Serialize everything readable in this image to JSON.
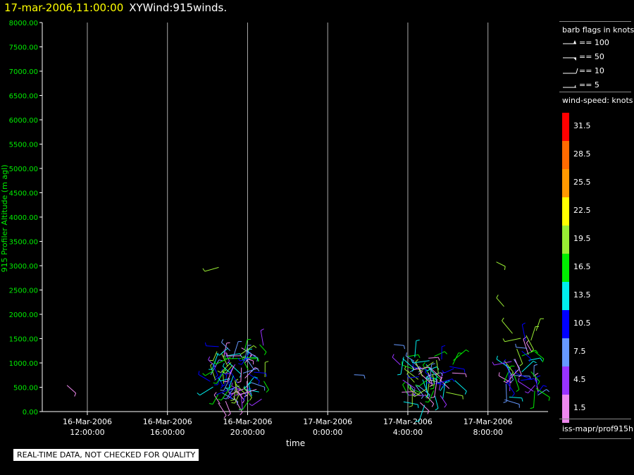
{
  "title": {
    "datetime": "17-mar-2006,11:00:00",
    "name": "XYWind:915winds."
  },
  "footer_note": "REAL-TIME DATA, NOT CHECKED FOR QUALITY",
  "legend": {
    "barb_title": "barb flags in knots",
    "barbs": [
      {
        "label": "== 100"
      },
      {
        "label": "== 50"
      },
      {
        "label": "== 10"
      },
      {
        "label": "== 5"
      }
    ],
    "speed_title": "wind-speed: knots",
    "speed_bins": [
      {
        "label": "31.5",
        "color": "#ff0000"
      },
      {
        "label": "28.5",
        "color": "#ff6a00"
      },
      {
        "label": "25.5",
        "color": "#ff9900"
      },
      {
        "label": "22.5",
        "color": "#ffff00"
      },
      {
        "label": "19.5",
        "color": "#99ee33"
      },
      {
        "label": "16.5",
        "color": "#00ee00"
      },
      {
        "label": "13.5",
        "color": "#00eeee"
      },
      {
        "label": "10.5",
        "color": "#0000ff"
      },
      {
        "label": "7.5",
        "color": "#6699ff"
      },
      {
        "label": "4.5",
        "color": "#9933ff"
      },
      {
        "label": "1.5",
        "color": "#ee88ee"
      }
    ],
    "source": "iss-mapr/prof915h"
  },
  "chart_data": {
    "type": "scatter",
    "title": "17-mar-2006,11:00:00 XYWind:915winds.",
    "xlabel": "time",
    "ylabel": "915 Profiler Altitude (m agl)",
    "ylim": [
      0,
      8000
    ],
    "yticks": [
      "0.00",
      "500.00",
      "1000.00",
      "1500.00",
      "2000.00",
      "2500.00",
      "3000.00",
      "3500.00",
      "4000.00",
      "4500.00",
      "5000.00",
      "5500.00",
      "6000.00",
      "6500.00",
      "7000.00",
      "7500.00",
      "8000.00"
    ],
    "xlim": [
      "2006-03-16 09:45",
      "2006-03-17 11:00"
    ],
    "xticks": [
      {
        "date": "16-Mar-2006",
        "time": "12:00:00",
        "t": "2006-03-16 12:00"
      },
      {
        "date": "16-Mar-2006",
        "time": "16:00:00",
        "t": "2006-03-16 16:00"
      },
      {
        "date": "16-Mar-2006",
        "time": "20:00:00",
        "t": "2006-03-16 20:00"
      },
      {
        "date": "17-Mar-2006",
        "time": "0:00:00",
        "t": "2006-03-17 00:00"
      },
      {
        "date": "17-Mar-2006",
        "time": "4:00:00",
        "t": "2006-03-17 04:00"
      },
      {
        "date": "17-Mar-2006",
        "time": "8:00:00",
        "t": "2006-03-17 08:00"
      }
    ],
    "grid": "vertical lines at time ticks",
    "series": [
      {
        "values": [
          {
            "t": "2006-03-16 11:00",
            "alt": [
              550
            ]
          },
          {
            "t": "2006-03-16 19:00",
            "alt": [
              200,
              280,
              360,
              440,
              520,
              600,
              680,
              760,
              840,
              920,
              1000,
              1080,
              1160,
              1240,
              1320
            ]
          },
          {
            "t": "2006-03-16 19:20",
            "alt": [
              3000
            ]
          },
          {
            "t": "2006-03-16 20:00",
            "alt": [
              200,
              280,
              360,
              440,
              520,
              600,
              680,
              760,
              840,
              920,
              1000,
              1080,
              1160,
              1240,
              1320
            ]
          },
          {
            "t": "2006-03-17 00:40",
            "alt": [
              780
            ]
          },
          {
            "t": "2006-03-17 03:40",
            "alt": [
              1450
            ]
          },
          {
            "t": "2006-03-17 04:30",
            "alt": [
              200,
              280,
              360,
              440,
              520,
              600,
              680,
              760,
              840,
              920,
              1000,
              1080,
              1160
            ]
          },
          {
            "t": "2006-03-17 05:30",
            "alt": [
              300,
              380,
              460,
              540,
              620,
              700,
              780,
              860,
              940,
              1020,
              1100
            ]
          },
          {
            "t": "2006-03-17 07:40",
            "alt": [
              3100
            ]
          },
          {
            "t": "2006-03-17 08:40",
            "alt": [
              2200
            ]
          },
          {
            "t": "2006-03-17 09:40",
            "alt": [
              300,
              380,
              460,
              540,
              620,
              700,
              780,
              860,
              940,
              1020,
              1100,
              1180,
              1300,
              1450,
              1600
            ]
          }
        ]
      }
    ]
  }
}
